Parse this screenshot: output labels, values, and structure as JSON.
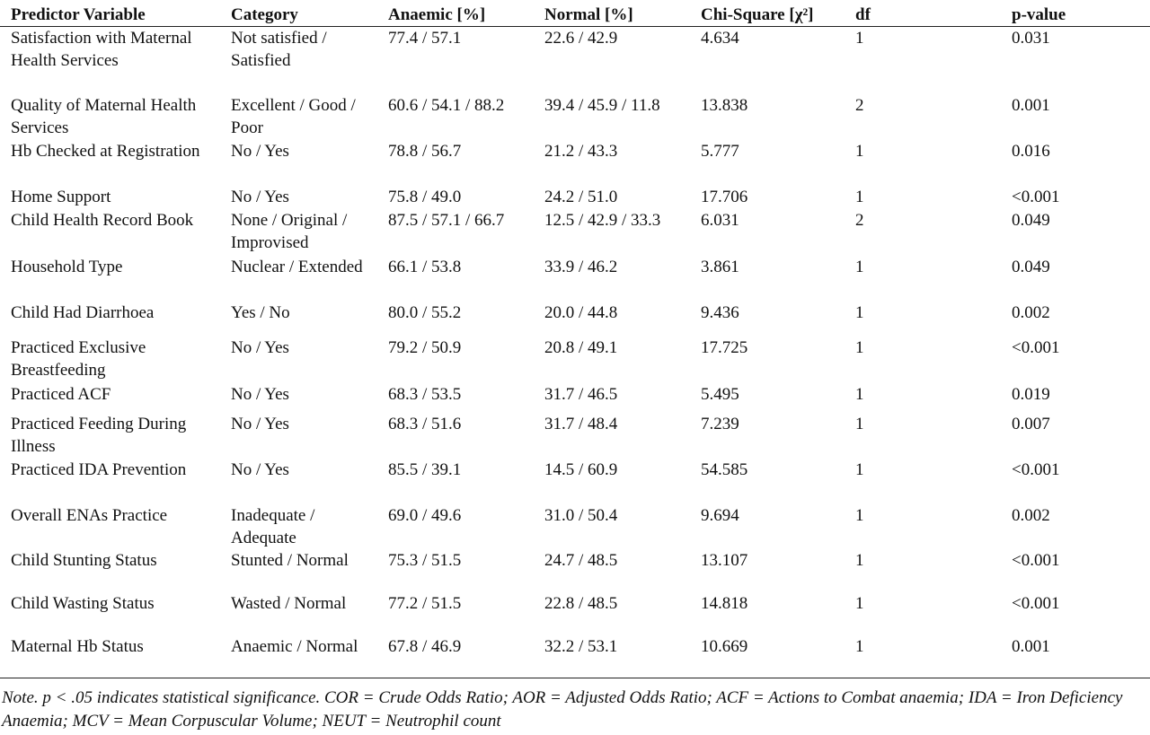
{
  "table": {
    "headers": [
      "Predictor Variable",
      "Category",
      "Anaemic [%]",
      "Normal [%]",
      "Chi-Square [χ²]",
      "df",
      "p-value"
    ],
    "rows": [
      [
        "Satisfaction with Maternal Health Services",
        "Not satisfied / Satisfied",
        "77.4 / 57.1",
        "22.6 / 42.9",
        "4.634",
        "1",
        "0.031"
      ],
      [
        "Quality of Maternal Health Services",
        "Excellent / Good / Poor",
        "60.6 / 54.1 / 88.2",
        "39.4 / 45.9 / 11.8",
        "13.838",
        "2",
        "0.001"
      ],
      [
        "Hb Checked at Registration",
        "No / Yes",
        "78.8 / 56.7",
        "21.2 / 43.3",
        "5.777",
        "1",
        "0.016"
      ],
      [
        "Home Support",
        "No / Yes",
        "75.8 / 49.0",
        "24.2 / 51.0",
        "17.706",
        "1",
        "<0.001"
      ],
      [
        "Child Health Record Book",
        "None / Original / Improvised",
        "87.5 / 57.1 / 66.7",
        "12.5 / 42.9 / 33.3",
        "6.031",
        "2",
        "0.049"
      ],
      [
        "Household Type",
        "Nuclear / Extended",
        "66.1 / 53.8",
        "33.9 / 46.2",
        "3.861",
        "1",
        "0.049"
      ],
      [
        "Child Had Diarrhoea",
        "Yes / No",
        "80.0 / 55.2",
        "20.0 / 44.8",
        "9.436",
        "1",
        "0.002"
      ],
      [
        "Practiced Exclusive Breastfeeding",
        "No / Yes",
        "79.2 / 50.9",
        "20.8 / 49.1",
        "17.725",
        "1",
        "<0.001"
      ],
      [
        "Practiced ACF",
        "No / Yes",
        "68.3 / 53.5",
        "31.7 / 46.5",
        "5.495",
        "1",
        "0.019"
      ],
      [
        "Practiced Feeding During Illness",
        "No / Yes",
        "68.3 / 51.6",
        "31.7 / 48.4",
        "7.239",
        "1",
        "0.007"
      ],
      [
        "Practiced IDA Prevention",
        "No / Yes",
        "85.5 / 39.1",
        "14.5 / 60.9",
        "54.585",
        "1",
        "<0.001"
      ],
      [
        "Overall ENAs Practice",
        "Inadequate / Adequate",
        "69.0 / 49.6",
        "31.0 / 50.4",
        "9.694",
        "1",
        "0.002"
      ],
      [
        "Child Stunting Status",
        "Stunted / Normal",
        "75.3 / 51.5",
        "24.7 / 48.5",
        "13.107",
        "1",
        "<0.001"
      ],
      [
        "Child Wasting Status",
        "Wasted / Normal",
        "77.2 / 51.5",
        "22.8 / 48.5",
        "14.818",
        "1",
        "<0.001"
      ],
      [
        "Maternal Hb Status",
        "Anaemic / Normal",
        "67.8 / 46.9",
        "32.2 / 53.1",
        "10.669",
        "1",
        "0.001"
      ]
    ]
  },
  "note": "Note. p < .05 indicates statistical significance. COR = Crude Odds Ratio; AOR = Adjusted Odds Ratio; ACF = Actions to Combat anaemia; IDA = Iron Deficiency Anaemia; MCV = Mean Corpuscular Volume; NEUT = Neutrophil count"
}
